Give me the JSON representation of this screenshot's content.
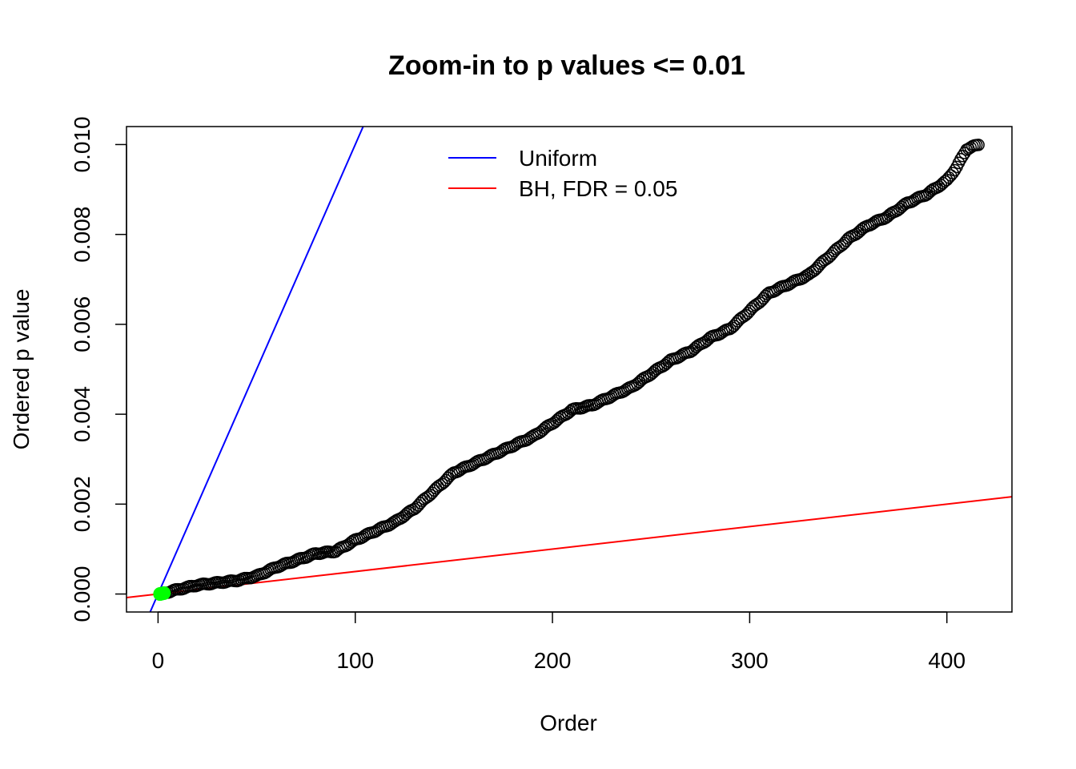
{
  "chart_data": {
    "type": "scatter",
    "title": "Zoom-in to p values <= 0.01",
    "xlabel": "Order",
    "ylabel": "Ordered p value",
    "xlim": [
      -16,
      433
    ],
    "ylim": [
      -0.0004,
      0.0104
    ],
    "x_ticks": [
      0,
      100,
      200,
      300,
      400
    ],
    "x_tick_labels": [
      "0",
      "100",
      "200",
      "300",
      "400"
    ],
    "y_ticks": [
      0,
      0.002,
      0.004,
      0.006,
      0.008,
      0.01
    ],
    "y_tick_labels": [
      "0.000",
      "0.002",
      "0.004",
      "0.006",
      "0.008",
      "0.010"
    ],
    "grid": false,
    "legend_position": "top",
    "series": [
      {
        "name": "",
        "kind": "points",
        "color": "#000000",
        "marker": "open-circle",
        "n": 416,
        "profile_x": [
          1,
          10,
          20,
          30,
          40,
          50,
          60,
          70,
          80,
          90,
          100,
          110,
          120,
          130,
          140,
          150,
          160,
          170,
          180,
          190,
          200,
          210,
          220,
          230,
          240,
          250,
          260,
          270,
          280,
          290,
          300,
          310,
          320,
          330,
          340,
          350,
          360,
          370,
          380,
          390,
          400,
          405,
          410,
          416
        ],
        "profile_y": [
          0.0,
          0.0001,
          0.0002,
          0.00025,
          0.0003,
          0.0004,
          0.0006,
          0.00075,
          0.0009,
          0.00095,
          0.0012,
          0.0014,
          0.0016,
          0.0019,
          0.0023,
          0.0027,
          0.0029,
          0.0031,
          0.0033,
          0.0035,
          0.0038,
          0.0041,
          0.0042,
          0.0044,
          0.0046,
          0.0049,
          0.0052,
          0.0054,
          0.0057,
          0.0059,
          0.0063,
          0.0067,
          0.0069,
          0.0071,
          0.0075,
          0.0079,
          0.0082,
          0.0084,
          0.0087,
          0.0089,
          0.0092,
          0.0095,
          0.0099,
          0.01
        ]
      },
      {
        "name": "",
        "kind": "highlight-points",
        "color": "#00ff00",
        "x": [
          1,
          2,
          3
        ],
        "y": [
          0.0,
          1e-05,
          2e-05
        ]
      },
      {
        "name": "Uniform",
        "kind": "line",
        "color": "#0000ff",
        "slope": 0.0001,
        "intercept": 0
      },
      {
        "name": "BH, FDR = 0.05",
        "kind": "line",
        "color": "#ff0000",
        "slope": 5e-06,
        "intercept": 0
      }
    ]
  }
}
